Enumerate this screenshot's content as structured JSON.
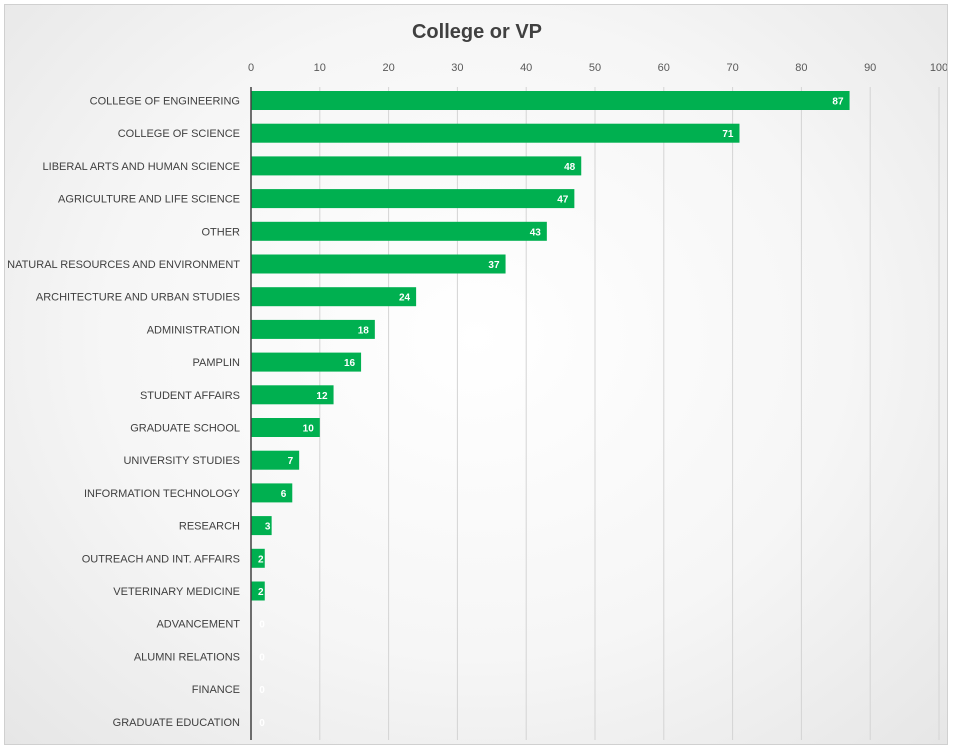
{
  "chart_data": {
    "type": "bar",
    "orientation": "horizontal",
    "title": "College or VP",
    "xlabel": "",
    "ylabel": "",
    "xlim": [
      0,
      100
    ],
    "x_ticks": [
      0,
      10,
      20,
      30,
      40,
      50,
      60,
      70,
      80,
      90,
      100
    ],
    "x_axis_position": "top",
    "grid": true,
    "bar_color": "#00B050",
    "data_labels": true,
    "categories": [
      "COLLEGE OF ENGINEERING",
      "COLLEGE OF SCIENCE",
      "LIBERAL ARTS AND HUMAN SCIENCE",
      "AGRICULTURE AND LIFE SCIENCE",
      "OTHER",
      "NATURAL RESOURCES AND ENVIRONMENT",
      "ARCHITECTURE AND URBAN STUDIES",
      "ADMINISTRATION",
      "PAMPLIN",
      "STUDENT AFFAIRS",
      "GRADUATE SCHOOL",
      "UNIVERSITY STUDIES",
      "INFORMATION TECHNOLOGY",
      "RESEARCH",
      "OUTREACH AND INT. AFFAIRS",
      "VETERINARY MEDICINE",
      "ADVANCEMENT",
      "ALUMNI RELATIONS",
      "FINANCE",
      "GRADUATE EDUCATION"
    ],
    "values": [
      87,
      71,
      48,
      47,
      43,
      37,
      24,
      18,
      16,
      12,
      10,
      7,
      6,
      3,
      2,
      2,
      0,
      0,
      0,
      0
    ]
  }
}
